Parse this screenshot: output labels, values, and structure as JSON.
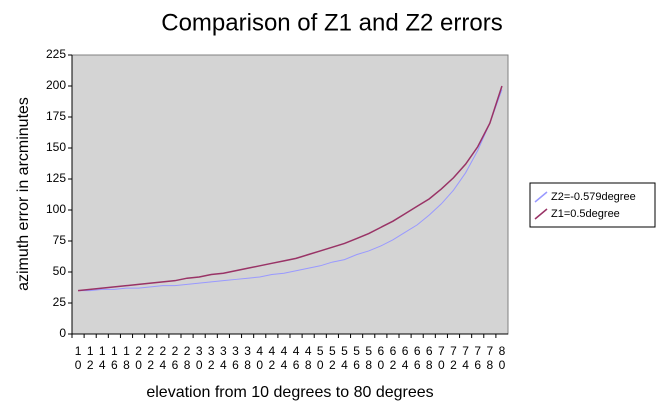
{
  "chart_data": {
    "type": "line",
    "title": "Comparison of Z1 and Z2 errors",
    "xlabel": "elevation from 10 degrees to 80 degrees",
    "ylabel": "azimuth error in arcminutes",
    "categories": [
      "10",
      "12",
      "14",
      "16",
      "18",
      "20",
      "22",
      "24",
      "26",
      "28",
      "30",
      "32",
      "34",
      "36",
      "38",
      "40",
      "42",
      "44",
      "46",
      "48",
      "50",
      "52",
      "54",
      "56",
      "58",
      "60",
      "62",
      "64",
      "66",
      "68",
      "70",
      "72",
      "74",
      "76",
      "78",
      "80"
    ],
    "series": [
      {
        "name": "Z2=-0.579degree",
        "color": "#9999ff",
        "values": [
          35,
          35,
          36,
          36,
          37,
          37,
          38,
          39,
          39,
          40,
          41,
          42,
          43,
          44,
          45,
          46,
          48,
          49,
          51,
          53,
          55,
          58,
          60,
          64,
          67,
          71,
          76,
          82,
          88,
          96,
          105,
          116,
          130,
          148,
          170,
          197
        ]
      },
      {
        "name": "Z1=0.5degree",
        "color": "#993366",
        "values": [
          35,
          36,
          37,
          38,
          39,
          40,
          41,
          42,
          43,
          45,
          46,
          48,
          49,
          51,
          53,
          55,
          57,
          59,
          61,
          64,
          67,
          70,
          73,
          77,
          81,
          86,
          91,
          97,
          103,
          109,
          117,
          126,
          137,
          151,
          170,
          200
        ]
      }
    ],
    "ylim": [
      0,
      225
    ],
    "yticks": [
      0,
      25,
      50,
      75,
      100,
      125,
      150,
      175,
      200,
      225
    ],
    "legend": "right"
  }
}
